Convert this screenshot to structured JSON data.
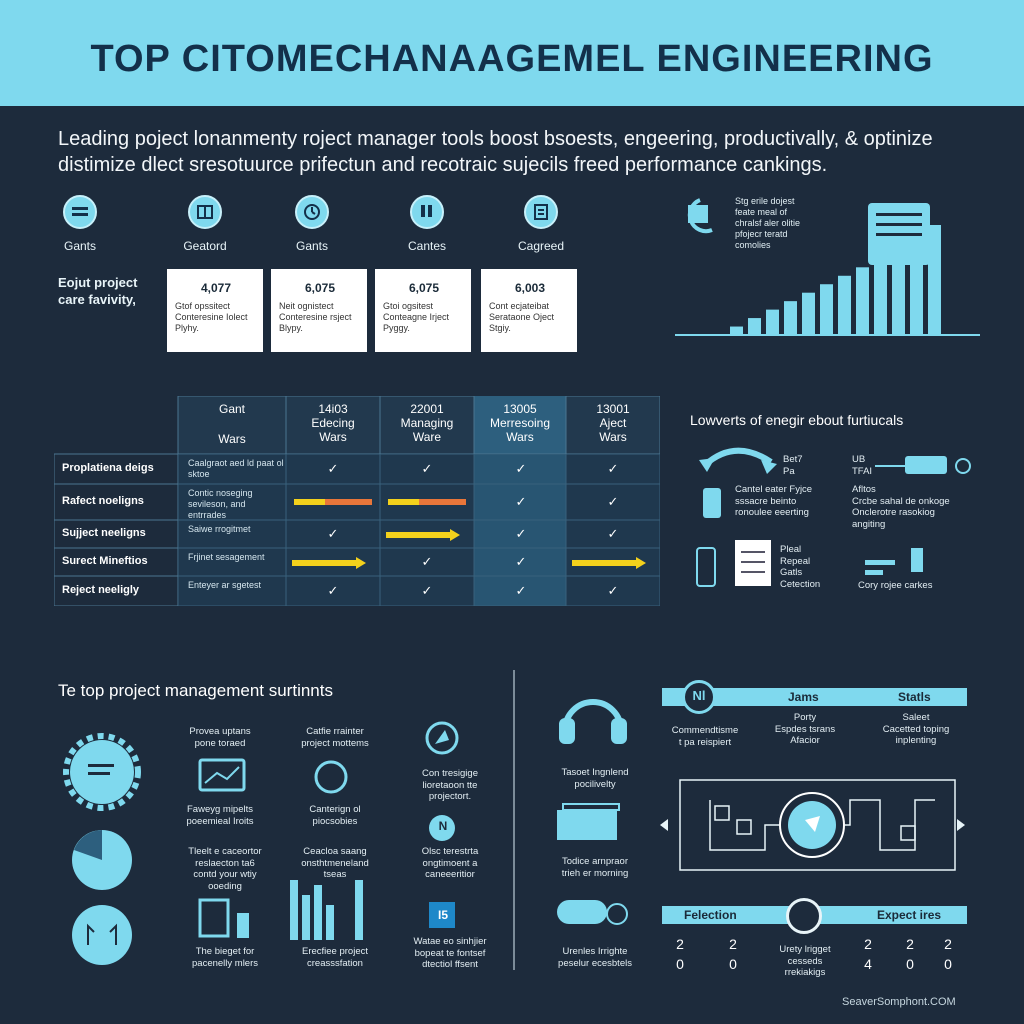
{
  "header": {
    "title": "TOP CITOMECHANAAGEMEL ENGINEERING"
  },
  "intro": {
    "line1": "Leading poject lonanmenty roject manager tools boost bsoests, engeering, productivally, & optinize",
    "line2": "distimize dlect sresotuurce prifectun and recotraic sujecils freed performance cankings."
  },
  "icons": [
    {
      "label": "Gants",
      "icon": "list-icon"
    },
    {
      "label": "Geatord",
      "icon": "calendar-icon"
    },
    {
      "label": "Gants",
      "icon": "clock-icon"
    },
    {
      "label": "Cantes",
      "icon": "boots-icon"
    },
    {
      "label": "Cagreed",
      "icon": "document-icon"
    }
  ],
  "cards_label": "Eojut project care favivity,",
  "cards": [
    {
      "value": "4,077",
      "lines": [
        "Gtof opssitect",
        "Conteresine Iolect",
        "Plyhy."
      ]
    },
    {
      "value": "6,075",
      "lines": [
        "Neit ognistect",
        "Conteresine rsject",
        "Blypy."
      ]
    },
    {
      "value": "6,075",
      "lines": [
        "Gtoi ogsitest",
        "Conteagne Irject",
        "Pyggy."
      ]
    },
    {
      "value": "6,003",
      "lines": [
        "Cont ecjateibat",
        "Serataone Oject",
        "Stgiy."
      ]
    }
  ],
  "chart_note": [
    "Stg erile dojest",
    "feate meal of",
    "chralsf aler olitie",
    "pfojecr teratd",
    "comolies"
  ],
  "chart_data": {
    "type": "bar",
    "values": [
      1,
      2,
      3,
      4,
      5,
      6,
      7,
      8,
      9,
      10,
      12,
      13
    ],
    "title": "",
    "xlabel": "",
    "ylabel": ""
  },
  "table": {
    "headers": [
      {
        "top": "Gant",
        "bottom": "Wars"
      },
      {
        "top": "14i03",
        "mid": "Edecing",
        "bottom": "Wars"
      },
      {
        "top": "22001",
        "mid": "Managing",
        "bottom": "Ware"
      },
      {
        "top": "13005",
        "mid": "Merresoing",
        "bottom": "Wars"
      },
      {
        "top": "13001",
        "mid": "Aject",
        "bottom": "Wars"
      }
    ],
    "rows": [
      {
        "label": "Proplatiena deigs",
        "desc": "Caalgraot aed ld paat ol sktoe",
        "cells": [
          "check",
          "check",
          "check",
          "check"
        ]
      },
      {
        "label": "Rafect noeligns",
        "desc": "Contic noseging sevileson, and entrrades",
        "cells": [
          "bar",
          "bar",
          "check",
          "check"
        ]
      },
      {
        "label": "Sujject neeligns",
        "desc": "Saiwe rrogitmet",
        "cells": [
          "check",
          "arrow",
          "check",
          "check"
        ]
      },
      {
        "label": "Surect Mineftios",
        "desc": "Frjinet sesagement",
        "cells": [
          "arrow",
          "check",
          "check",
          "arrow"
        ]
      },
      {
        "label": "Reject neeligly",
        "desc": "Enteyer ar sgetest",
        "cells": [
          "check",
          "check",
          "check",
          "check"
        ]
      }
    ],
    "check_glyph": "✓"
  },
  "right_mid": {
    "title": "Lowverts of enegir ebout furtiucals",
    "a": [
      "Bet7",
      "Pa"
    ],
    "b": [
      "UB",
      "TFAI"
    ],
    "c": [
      "Cantel eater Fyjce",
      "sssacre beinto",
      "ronoulee eeerting"
    ],
    "d": [
      "Afltos",
      "Crcbe sahal de onkoge",
      "Onclerotre rasokiog",
      "angiting"
    ],
    "e": [
      "Pleal",
      "Repeal",
      "Gatls",
      "Cetection"
    ],
    "f": "Cory rojee carkes"
  },
  "bottom_left": {
    "title": "Te top project management surtinnts",
    "items": [
      [
        "Provea uptans",
        "pone toraed"
      ],
      [
        "Catfie rrainter",
        "project mottems"
      ],
      [
        "Faweyg mipelts",
        "poeemieal Iroits"
      ],
      [
        "Canterign ol",
        "piocsobies"
      ],
      [
        "Con tresigige",
        "lioretaoon tte",
        "projectort."
      ],
      [
        "Tleelt e caceortor",
        "reslaecton ta6",
        "contd your wtiy",
        "ooeding"
      ],
      [
        "Ceacloa saang",
        "onsthtmeneland",
        "tseas"
      ],
      [
        "Olsc terestrta",
        "ongtimoent a",
        "caneeeritior"
      ],
      [
        "The bieget for",
        "pacenelly mlers"
      ],
      [
        "Erecfiee project",
        "creasssfation"
      ],
      [
        "Watae eo sinhjier",
        "bopeat te fontsef",
        "dtectiol ffsent"
      ]
    ],
    "badge_n": "N",
    "badge_b": "I5"
  },
  "bottom_right": {
    "left_texts": [
      [
        "Tasoet Ingnlend",
        "pocilivelty"
      ],
      [
        "Todice arnpraor",
        "trieh er morning"
      ],
      [
        "Urenles Irrighte",
        "peselur ecesbtels"
      ]
    ],
    "headers": [
      "Jams",
      "Statls"
    ],
    "nl_badge": "Nl",
    "col1": [
      "Commendtisme",
      "t pa reispiert"
    ],
    "col2": [
      "Porty",
      "Espdes tsrans",
      "Afacior"
    ],
    "col3": [
      "Saleet",
      "Cacetted toping",
      "inplenting"
    ],
    "bottom_headers": [
      "Felection",
      "Expect ires"
    ],
    "bottom_mid": [
      "Urety lrigget",
      "cesseds",
      "rrekiakigs"
    ],
    "digits_left": [
      [
        "2",
        "2"
      ],
      [
        "0",
        "0"
      ]
    ],
    "digits_right": [
      [
        "2",
        "2",
        "2"
      ],
      [
        "4",
        "0",
        "0"
      ]
    ]
  },
  "footer": "SeaverSomphont.COM",
  "colors": {
    "accent": "#7fd9ee",
    "bg": "#1d2b3c",
    "yellow": "#f3d11c",
    "orange": "#e8763a"
  }
}
